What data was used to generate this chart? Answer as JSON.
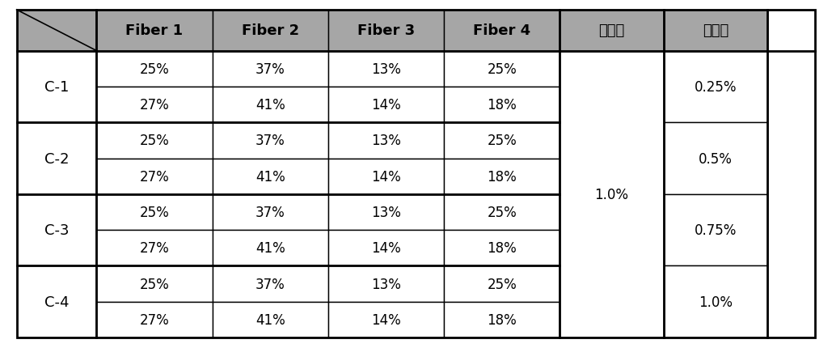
{
  "header_bg": "#a6a6a6",
  "cell_bg": "#ffffff",
  "border_color": "#000000",
  "col_headers": [
    "Fiber 1",
    "Fiber 2",
    "Fiber 3",
    "Fiber 4",
    "바인더",
    "발수제"
  ],
  "row_groups": [
    "C-1",
    "C-2",
    "C-3",
    "C-4"
  ],
  "rows": [
    [
      "25%",
      "37%",
      "13%",
      "25%"
    ],
    [
      "27%",
      "41%",
      "14%",
      "18%"
    ],
    [
      "25%",
      "37%",
      "13%",
      "25%"
    ],
    [
      "27%",
      "41%",
      "14%",
      "18%"
    ],
    [
      "25%",
      "37%",
      "13%",
      "25%"
    ],
    [
      "27%",
      "41%",
      "14%",
      "18%"
    ],
    [
      "25%",
      "37%",
      "13%",
      "25%"
    ],
    [
      "27%",
      "41%",
      "14%",
      "18%"
    ]
  ],
  "binder_value": "1.0%",
  "repellent_values": [
    "0.25%",
    "0.5%",
    "0.75%",
    "1.0%"
  ],
  "header_font_size": 13,
  "cell_font_size": 12,
  "group_font_size": 13
}
